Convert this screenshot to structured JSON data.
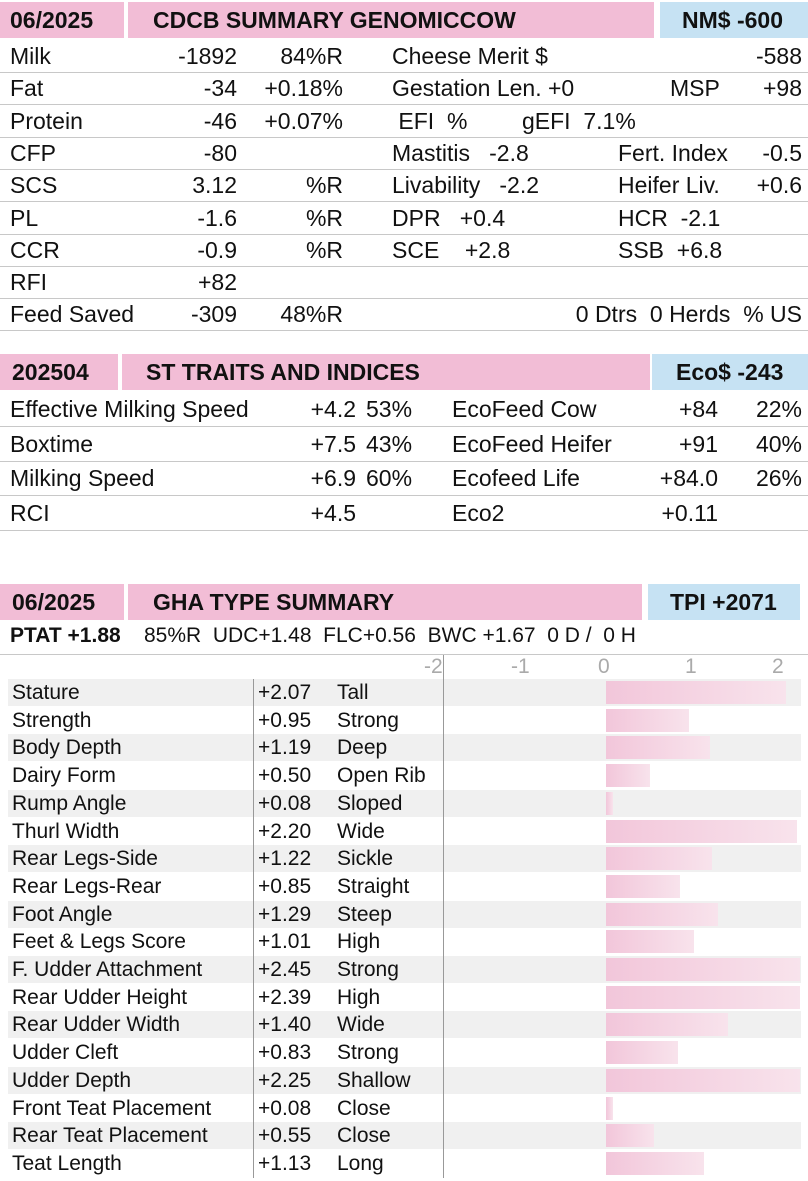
{
  "cdcb": {
    "date": "06/2025",
    "title": "CDCB SUMMARY GENOMICCOW",
    "index": "NM$ -600",
    "rows": [
      {
        "a": "Milk",
        "b": "-1892",
        "c": "84%R",
        "d": "Cheese Merit $",
        "e": "",
        "f": "-588"
      },
      {
        "a": "Fat",
        "b": "-34",
        "c": "+0.18%",
        "d": "Gestation Len. +0",
        "e": "MSP",
        "f": "+98"
      },
      {
        "a": "Protein",
        "b": "-46",
        "c": "+0.07%",
        "d": " EFI  %",
        "e": "gEFI  7.1%",
        "f": ""
      },
      {
        "a": "CFP",
        "b": "-80",
        "c": "",
        "d": "Mastitis   -2.8",
        "e": "Fert. Index",
        "f": "-0.5"
      },
      {
        "a": "SCS",
        "b": "3.12",
        "c": "%R",
        "d": "Livability   -2.2",
        "e": "Heifer Liv.",
        "f": "+0.6"
      },
      {
        "a": "PL",
        "b": "-1.6",
        "c": "%R",
        "d": "DPR   +0.4",
        "e": "HCR  -2.1",
        "f": ""
      },
      {
        "a": "CCR",
        "b": "-0.9",
        "c": "%R",
        "d": "SCE    +2.8",
        "e": "SSB  +6.8",
        "f": ""
      },
      {
        "a": "RFI",
        "b": "+82",
        "c": "",
        "d": "",
        "e": "",
        "f": ""
      },
      {
        "a": "Feed Saved",
        "b": "-309",
        "c": "48%R",
        "d": "",
        "e": "",
        "f": "0 Dtrs  0 Herds  % US"
      }
    ]
  },
  "st": {
    "date": "202504",
    "title": "ST TRAITS AND INDICES",
    "index": "Eco$ -243",
    "rows": [
      {
        "a": "Effective Milking Speed",
        "b": "+4.2",
        "c": "53%",
        "d": "EcoFeed Cow",
        "e": "+84",
        "f": "22%"
      },
      {
        "a": "Boxtime",
        "b": "+7.5",
        "c": "43%",
        "d": "EcoFeed Heifer",
        "e": "+91",
        "f": "40%"
      },
      {
        "a": "Milking Speed",
        "b": "+6.9",
        "c": "60%",
        "d": "Ecofeed Life",
        "e": "+84.0",
        "f": "26%"
      },
      {
        "a": "RCI",
        "b": "+4.5",
        "c": "",
        "d": "Eco2",
        "e": "+0.11",
        "f": ""
      }
    ]
  },
  "gha": {
    "date": "06/2025",
    "title": "GHA TYPE SUMMARY",
    "index": "TPI +2071",
    "ptat_label": "PTAT +1.88",
    "summary": "85%R  UDC+1.48  FLC+0.56  BWC +1.67  0 D /  0 H",
    "axis_ticks": [
      "-2",
      "-1",
      "0",
      "1",
      "2"
    ],
    "traits": [
      {
        "name": "Stature",
        "value": "+2.07",
        "desc": "Tall",
        "v": 2.07
      },
      {
        "name": "Strength",
        "value": "+0.95",
        "desc": "Strong",
        "v": 0.95
      },
      {
        "name": "Body Depth",
        "value": "+1.19",
        "desc": "Deep",
        "v": 1.19
      },
      {
        "name": "Dairy Form",
        "value": "+0.50",
        "desc": "Open Rib",
        "v": 0.5
      },
      {
        "name": "Rump Angle",
        "value": "+0.08",
        "desc": "Sloped",
        "v": 0.08
      },
      {
        "name": "Thurl Width",
        "value": "+2.20",
        "desc": "Wide",
        "v": 2.2
      },
      {
        "name": "Rear Legs-Side",
        "value": "+1.22",
        "desc": "Sickle",
        "v": 1.22
      },
      {
        "name": "Rear Legs-Rear",
        "value": "+0.85",
        "desc": "Straight",
        "v": 0.85
      },
      {
        "name": "Foot Angle",
        "value": "+1.29",
        "desc": "Steep",
        "v": 1.29
      },
      {
        "name": "Feet & Legs Score",
        "value": "+1.01",
        "desc": "High",
        "v": 1.01
      },
      {
        "name": "F. Udder Attachment",
        "value": "+2.45",
        "desc": "Strong",
        "v": 2.45
      },
      {
        "name": "Rear Udder Height",
        "value": "+2.39",
        "desc": "High",
        "v": 2.39
      },
      {
        "name": "Rear Udder Width",
        "value": "+1.40",
        "desc": "Wide",
        "v": 1.4
      },
      {
        "name": "Udder Cleft",
        "value": "+0.83",
        "desc": "Strong",
        "v": 0.83
      },
      {
        "name": "Udder Depth",
        "value": "+2.25",
        "desc": "Shallow",
        "v": 2.25
      },
      {
        "name": "Front Teat Placement",
        "value": "+0.08",
        "desc": "Close",
        "v": 0.08
      },
      {
        "name": "Rear Teat Placement",
        "value": "+0.55",
        "desc": "Close",
        "v": 0.55
      },
      {
        "name": "Teat Length",
        "value": "+1.13",
        "desc": "Long",
        "v": 1.13
      }
    ]
  }
}
